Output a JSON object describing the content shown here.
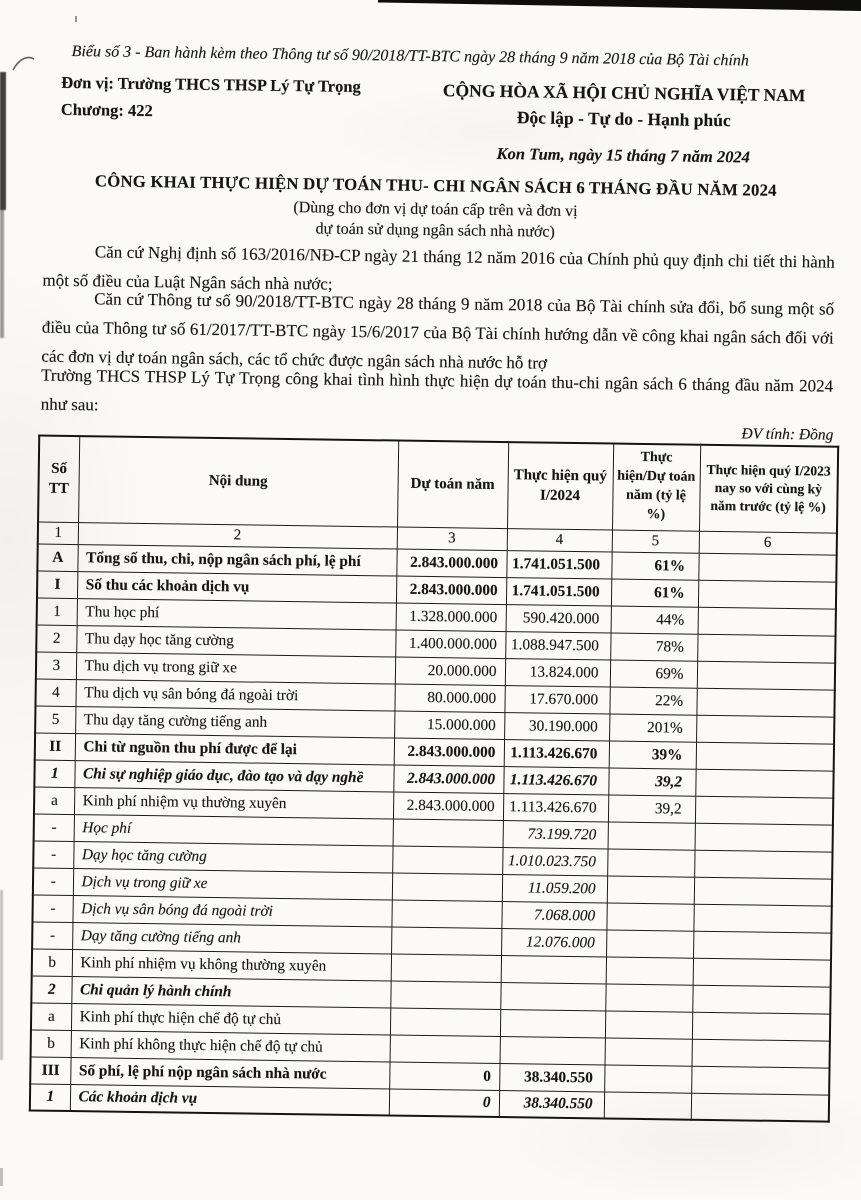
{
  "page": {
    "form_note": "Biểu số 3 - Ban hành kèm theo Thông tư số 90/2018/TT-BTC  ngày 28 tháng 9 năm 2018 của Bộ Tài chính",
    "unit_label": "Đơn vị: Trường THCS THSP Lý Tự Trọng",
    "chapter_label": "Chương: 422",
    "national_title": "CỘNG HÒA XÃ HỘI CHỦ NGHĨA VIỆT NAM",
    "national_motto": "Độc lập - Tự do - Hạnh phúc",
    "place_date": "Kon Tum, ngày 15 tháng 7 năm 2024",
    "title": "CÔNG KHAI THỰC HIỆN DỰ TOÁN THU- CHI NGÂN SÁCH 6 THÁNG ĐẦU NĂM 2024",
    "subtitle_line1": "(Dùng cho đơn vị dự toán cấp trên và đơn vị",
    "subtitle_line2": "dự toán sử dụng ngân sách nhà nước)",
    "paragraph1": "Căn cứ Nghị định số 163/2016/NĐ-CP ngày 21 tháng 12 năm 2016 của Chính phủ quy định chi tiết thi hành một số điều của Luật Ngân sách nhà nước;",
    "paragraph2": "Căn cứ Thông tư số 90/2018/TT-BTC ngày 28 tháng 9 năm 2018 của Bộ Tài chính sửa đổi, bổ sung một số điều của Thông tư số 61/2017/TT-BTC ngày 15/6/2017 của Bộ Tài chính hướng dẫn về công khai ngân sách đối với các đơn vị dự toán ngân sách, các tổ chức được ngân sách nhà nước hỗ trợ",
    "paragraph3": "Trường THCS THSP Lý Tự Trọng công khai tình hình thực hiện dự toán thu-chi ngân sách 6 tháng đầu năm 2024 như sau:",
    "unit_note": "ĐV tính: Đồng"
  },
  "table": {
    "headers": [
      "Số TT",
      "Nội dung",
      "Dự toán năm",
      "Thực hiện quý I/2024",
      "Thực hiện/Dự toán năm (tỷ lệ %)",
      "Thực hiện quý I/2023 nay so với cùng kỳ năm trước (tỷ lệ %)"
    ],
    "column_numbers": [
      "1",
      "2",
      "3",
      "4",
      "5",
      "6"
    ],
    "rows": [
      {
        "stt": "A",
        "label": "Tổng số thu, chi, nộp ngân sách phí, lệ phí",
        "plan": "2.843.000.000",
        "actual": "1.741.051.500",
        "ratio": "61%",
        "prior": "",
        "kind": "section"
      },
      {
        "stt": "I",
        "label": "Số thu các khoản dịch vụ",
        "plan": "2.843.000.000",
        "actual": "1.741.051.500",
        "ratio": "61%",
        "prior": "",
        "kind": "section"
      },
      {
        "stt": "1",
        "label": "Thu học phí",
        "plan": "1.328.000.000",
        "actual": "590.420.000",
        "ratio": "44%",
        "prior": "",
        "kind": "normal"
      },
      {
        "stt": "2",
        "label": "Thu dạy học tăng cường",
        "plan": "1.400.000.000",
        "actual": "1.088.947.500",
        "ratio": "78%",
        "prior": "",
        "kind": "normal"
      },
      {
        "stt": "3",
        "label": "Thu dịch vụ trong giữ xe",
        "plan": "20.000.000",
        "actual": "13.824.000",
        "ratio": "69%",
        "prior": "",
        "kind": "normal"
      },
      {
        "stt": "4",
        "label": "Thu dịch vụ sân bóng đá ngoài trời",
        "plan": "80.000.000",
        "actual": "17.670.000",
        "ratio": "22%",
        "prior": "",
        "kind": "normal"
      },
      {
        "stt": "5",
        "label": "Thu dạy tăng cường tiếng anh",
        "plan": "15.000.000",
        "actual": "30.190.000",
        "ratio": "201%",
        "prior": "",
        "kind": "normal"
      },
      {
        "stt": "II",
        "label": "Chi từ nguồn thu phí được để lại",
        "plan": "2.843.000.000",
        "actual": "1.113.426.670",
        "ratio": "39%",
        "prior": "",
        "kind": "section"
      },
      {
        "stt": "1",
        "label": "Chi sự nghiệp giáo dục, đào tạo và dạy nghề",
        "plan": "2.843.000.000",
        "actual": "1.113.426.670",
        "ratio": "39,2",
        "prior": "",
        "kind": "section-italic"
      },
      {
        "stt": "a",
        "label": "Kinh phí nhiệm vụ thường xuyên",
        "plan": "2.843.000.000",
        "actual": "1.113.426.670",
        "ratio": "39,2",
        "prior": "",
        "kind": "normal"
      },
      {
        "stt": "-",
        "label": "Học phí",
        "plan": "",
        "actual": "73.199.720",
        "ratio": "",
        "prior": "",
        "kind": "detail-italic"
      },
      {
        "stt": "-",
        "label": "Dạy học tăng cường",
        "plan": "",
        "actual": "1.010.023.750",
        "ratio": "",
        "prior": "",
        "kind": "detail-italic"
      },
      {
        "stt": "-",
        "label": "Dịch vụ trong giữ xe",
        "plan": "",
        "actual": "11.059.200",
        "ratio": "",
        "prior": "",
        "kind": "detail-italic"
      },
      {
        "stt": "-",
        "label": "Dịch vụ sân bóng đá ngoài trời",
        "plan": "",
        "actual": "7.068.000",
        "ratio": "",
        "prior": "",
        "kind": "detail-italic"
      },
      {
        "stt": "-",
        "label": "Dạy tăng cường tiếng anh",
        "plan": "",
        "actual": "12.076.000",
        "ratio": "",
        "prior": "",
        "kind": "detail-italic"
      },
      {
        "stt": "b",
        "label": "Kinh phí nhiệm vụ không thường xuyên",
        "plan": "",
        "actual": "",
        "ratio": "",
        "prior": "",
        "kind": "normal"
      },
      {
        "stt": "2",
        "label": "Chi quản lý hành chính",
        "plan": "",
        "actual": "",
        "ratio": "",
        "prior": "",
        "kind": "section-italic"
      },
      {
        "stt": "a",
        "label": "Kinh phí thực hiện chế độ tự chủ",
        "plan": "",
        "actual": "",
        "ratio": "",
        "prior": "",
        "kind": "normal"
      },
      {
        "stt": "b",
        "label": "Kinh phí không thực hiện chế độ tự chủ",
        "plan": "",
        "actual": "",
        "ratio": "",
        "prior": "",
        "kind": "normal"
      },
      {
        "stt": "III",
        "label": "Số phí, lệ phí nộp ngân sách nhà nước",
        "plan": "0",
        "actual": "38.340.550",
        "ratio": "",
        "prior": "",
        "kind": "section"
      },
      {
        "stt": "1",
        "label": "Các khoản dịch vụ",
        "plan": "0",
        "actual": "38.340.550",
        "ratio": "",
        "prior": "",
        "kind": "section-italic"
      }
    ]
  }
}
